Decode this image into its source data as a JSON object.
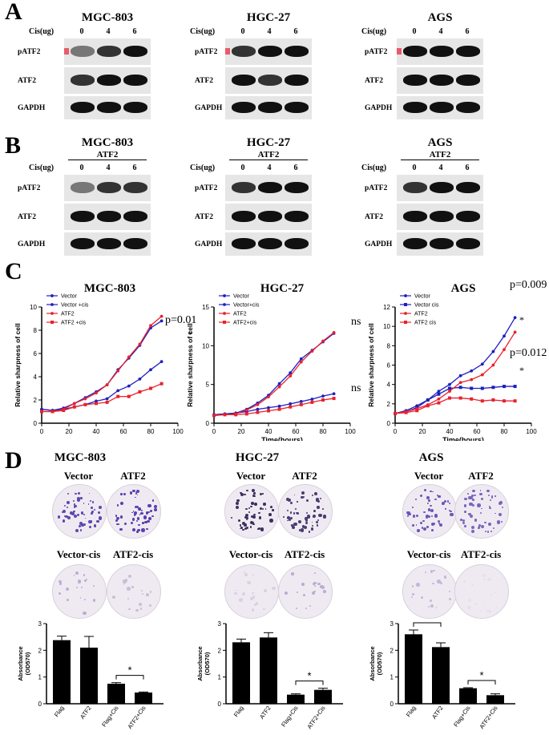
{
  "panel_A": {
    "letter": "A",
    "blots": [
      {
        "cell_line": "MGC-803",
        "cis_label": "Cis(ug)",
        "lanes": [
          "0",
          "4",
          "6"
        ],
        "rows": [
          "pATF2",
          "ATF2",
          "GAPDH"
        ]
      },
      {
        "cell_line": "HGC-27",
        "cis_label": "Cis(ug)",
        "lanes": [
          "0",
          "4",
          "6"
        ],
        "rows": [
          "pATF2",
          "ATF2",
          "GAPDH"
        ]
      },
      {
        "cell_line": "AGS",
        "cis_label": "Cis(ug)",
        "lanes": [
          "0",
          "4",
          "6"
        ],
        "rows": [
          "pATF2",
          "ATF2",
          "GAPDH"
        ]
      }
    ]
  },
  "panel_B": {
    "letter": "B",
    "blots": [
      {
        "cell_line": "MGC-803",
        "sublabel": "ATF2",
        "cis_label": "Cis(ug)",
        "lanes": [
          "0",
          "4",
          "6"
        ],
        "rows": [
          "pATF2",
          "ATF2",
          "GAPDH"
        ]
      },
      {
        "cell_line": "HGC-27",
        "sublabel": "ATF2",
        "cis_label": "Cis(ug)",
        "lanes": [
          "0",
          "4",
          "6"
        ],
        "rows": [
          "pATF2",
          "ATF2",
          "GAPDH"
        ]
      },
      {
        "cell_line": "AGS",
        "sublabel": "ATF2",
        "cis_label": "Cis(ug)",
        "lanes": [
          "0",
          "4",
          "6"
        ],
        "rows": [
          "pATF2",
          "ATF2",
          "GAPDH"
        ]
      }
    ]
  },
  "panel_C": {
    "letter": "C"
  },
  "panel_D": {
    "letter": "D",
    "colonies": [
      {
        "cell_line": "MGC-803",
        "labels": [
          "Vector",
          "ATF2",
          "Vector-cis",
          "ATF2-cis"
        ]
      },
      {
        "cell_line": "HGC-27",
        "labels": [
          "Vector",
          "ATF2",
          "Vector-cis",
          "ATF2-cis"
        ]
      },
      {
        "cell_line": "AGS",
        "labels": [
          "Vector",
          "ATF2",
          "Vector-cis",
          "ATF2-cis"
        ]
      }
    ]
  },
  "colors": {
    "blue": "#1f1fbf",
    "red": "#e8222b",
    "bar": "#000000"
  },
  "chart_data": [
    {
      "type": "line",
      "title": "MGC-803",
      "xlabel": "",
      "ylabel": "Relative sharpness of cell",
      "xlim": [
        0,
        100
      ],
      "ylim": [
        0,
        10
      ],
      "xticks": [
        0,
        20,
        40,
        60,
        80,
        100
      ],
      "yticks": [
        0,
        2,
        4,
        6,
        8,
        10
      ],
      "series": [
        {
          "name": "Vector",
          "color": "#1f1fbf",
          "marker": "circle",
          "x": [
            0,
            8,
            16,
            24,
            32,
            40,
            48,
            56,
            64,
            72,
            80,
            88
          ],
          "y": [
            1.2,
            1.1,
            1.3,
            1.7,
            2.2,
            2.7,
            3.3,
            4.6,
            5.6,
            6.7,
            8.2,
            8.8
          ]
        },
        {
          "name": "Vector +cis",
          "color": "#1f1fbf",
          "marker": "circle",
          "x": [
            0,
            8,
            16,
            24,
            32,
            40,
            48,
            56,
            64,
            72,
            80,
            88
          ],
          "y": [
            1.2,
            1.1,
            1.2,
            1.4,
            1.6,
            1.9,
            2.1,
            2.8,
            3.2,
            3.8,
            4.6,
            5.3
          ]
        },
        {
          "name": "ATF2",
          "color": "#e8222b",
          "marker": "circle",
          "x": [
            0,
            8,
            16,
            24,
            32,
            40,
            48,
            56,
            64,
            72,
            80,
            88
          ],
          "y": [
            1.0,
            1.0,
            1.2,
            1.7,
            2.1,
            2.6,
            3.3,
            4.5,
            5.7,
            6.8,
            8.4,
            9.2
          ]
        },
        {
          "name": "ATF2 +cis",
          "color": "#e8222b",
          "marker": "square",
          "x": [
            0,
            8,
            16,
            24,
            32,
            40,
            48,
            56,
            64,
            72,
            80,
            88
          ],
          "y": [
            1.0,
            1.0,
            1.1,
            1.4,
            1.6,
            1.7,
            1.8,
            2.3,
            2.3,
            2.7,
            3.0,
            3.4
          ]
        }
      ],
      "annotations": [
        "p=0.01",
        "*"
      ]
    },
    {
      "type": "line",
      "title": "HGC-27",
      "xlabel": "Time(hours)",
      "ylabel": "Relative sharpness of cell",
      "xlim": [
        0,
        100
      ],
      "ylim": [
        0,
        15
      ],
      "xticks": [
        0,
        20,
        40,
        60,
        80,
        100
      ],
      "yticks": [
        0,
        5,
        10,
        15
      ],
      "series": [
        {
          "name": "Vector",
          "color": "#1f1fbf",
          "marker": "circle",
          "x": [
            0,
            8,
            16,
            24,
            32,
            40,
            48,
            56,
            64,
            72,
            80,
            88
          ],
          "y": [
            1.1,
            1.2,
            1.3,
            1.8,
            2.6,
            3.6,
            5.1,
            6.5,
            8.3,
            9.4,
            10.5,
            11.6
          ]
        },
        {
          "name": "Vector+cis",
          "color": "#1f1fbf",
          "marker": "circle",
          "x": [
            0,
            8,
            16,
            24,
            32,
            40,
            48,
            56,
            64,
            72,
            80,
            88
          ],
          "y": [
            1.1,
            1.2,
            1.3,
            1.5,
            1.8,
            2.0,
            2.2,
            2.5,
            2.8,
            3.1,
            3.5,
            3.8
          ]
        },
        {
          "name": "ATF2",
          "color": "#e8222b",
          "marker": "circle",
          "x": [
            0,
            8,
            16,
            24,
            32,
            40,
            48,
            56,
            64,
            72,
            80,
            88
          ],
          "y": [
            1.0,
            1.1,
            1.2,
            1.7,
            2.4,
            3.4,
            4.7,
            6.1,
            7.9,
            9.3,
            10.6,
            11.7
          ]
        },
        {
          "name": "ATF2+cis",
          "color": "#e8222b",
          "marker": "square",
          "x": [
            0,
            8,
            16,
            24,
            32,
            40,
            48,
            56,
            64,
            72,
            80,
            88
          ],
          "y": [
            1.0,
            1.1,
            1.1,
            1.2,
            1.4,
            1.6,
            1.8,
            2.1,
            2.4,
            2.7,
            3.0,
            3.2
          ]
        }
      ],
      "annotations": [
        "ns",
        "ns"
      ]
    },
    {
      "type": "line",
      "title": "AGS",
      "xlabel": "Time(hours)",
      "ylabel": "Relative sharpness of cell",
      "xlim": [
        0,
        100
      ],
      "ylim": [
        0,
        12
      ],
      "xticks": [
        0,
        20,
        40,
        60,
        80,
        100
      ],
      "yticks": [
        0,
        2,
        4,
        6,
        8,
        10,
        12
      ],
      "series": [
        {
          "name": "Vector",
          "color": "#1f1fbf",
          "marker": "circle",
          "x": [
            0,
            8,
            16,
            24,
            32,
            40,
            48,
            56,
            64,
            72,
            80,
            88
          ],
          "y": [
            1.0,
            1.3,
            1.8,
            2.4,
            3.3,
            4.0,
            4.9,
            5.4,
            6.1,
            7.4,
            9.0,
            10.9
          ]
        },
        {
          "name": "Vector cis",
          "color": "#1f1fbf",
          "marker": "square",
          "x": [
            0,
            8,
            16,
            24,
            32,
            40,
            48,
            56,
            64,
            72,
            80,
            88
          ],
          "y": [
            1.0,
            1.2,
            1.6,
            2.4,
            3.0,
            3.6,
            3.7,
            3.6,
            3.6,
            3.7,
            3.8,
            3.8
          ]
        },
        {
          "name": "ATF2",
          "color": "#e8222b",
          "marker": "circle",
          "x": [
            0,
            8,
            16,
            24,
            32,
            40,
            48,
            56,
            64,
            72,
            80,
            88
          ],
          "y": [
            1.0,
            1.2,
            1.5,
            1.9,
            2.5,
            3.3,
            4.2,
            4.5,
            5.0,
            6.0,
            7.6,
            9.4
          ]
        },
        {
          "name": "ATF2 cis",
          "color": "#e8222b",
          "marker": "square",
          "x": [
            0,
            8,
            16,
            24,
            32,
            40,
            48,
            56,
            64,
            72,
            80,
            88
          ],
          "y": [
            1.0,
            1.1,
            1.3,
            1.8,
            2.1,
            2.6,
            2.6,
            2.5,
            2.3,
            2.4,
            2.3,
            2.3
          ]
        }
      ],
      "annotations": [
        "p=0.009",
        "*",
        "p=0.012",
        "*"
      ]
    },
    {
      "type": "bar",
      "title": "",
      "xlabel": "",
      "ylabel": "Absorbance\n(OD570)",
      "ylim": [
        0,
        3
      ],
      "yticks": [
        0,
        1,
        2,
        3
      ],
      "categories": [
        "Flag",
        "ATF2",
        "Flag+Cis",
        "ATF2+Cis"
      ],
      "values": [
        2.38,
        2.1,
        0.75,
        0.42
      ],
      "errors": [
        0.15,
        0.42,
        0.04,
        0.02
      ],
      "significance": [
        {
          "between": [
            2,
            3
          ],
          "label": "*"
        }
      ]
    },
    {
      "type": "bar",
      "title": "",
      "xlabel": "",
      "ylabel": "Absorbance\n(OD570)",
      "ylim": [
        0,
        3
      ],
      "yticks": [
        0,
        1,
        2,
        3
      ],
      "categories": [
        "Flag",
        "ATF2",
        "Flag+Cis",
        "ATF2+Cis"
      ],
      "values": [
        2.3,
        2.48,
        0.34,
        0.52
      ],
      "errors": [
        0.12,
        0.18,
        0.03,
        0.06
      ],
      "significance": [
        {
          "between": [
            2,
            3
          ],
          "label": "*"
        }
      ]
    },
    {
      "type": "bar",
      "title": "",
      "xlabel": "",
      "ylabel": "Absorbance\n(OD570)",
      "ylim": [
        0,
        3
      ],
      "yticks": [
        0,
        1,
        2,
        3
      ],
      "categories": [
        "Flag",
        "ATF2",
        "Flag+Cis",
        "ATF2+Cis"
      ],
      "values": [
        2.6,
        2.12,
        0.58,
        0.32
      ],
      "errors": [
        0.16,
        0.16,
        0.02,
        0.05
      ],
      "significance": [
        {
          "between": [
            0,
            1
          ],
          "label": "*"
        },
        {
          "between": [
            2,
            3
          ],
          "label": "*"
        }
      ]
    }
  ]
}
